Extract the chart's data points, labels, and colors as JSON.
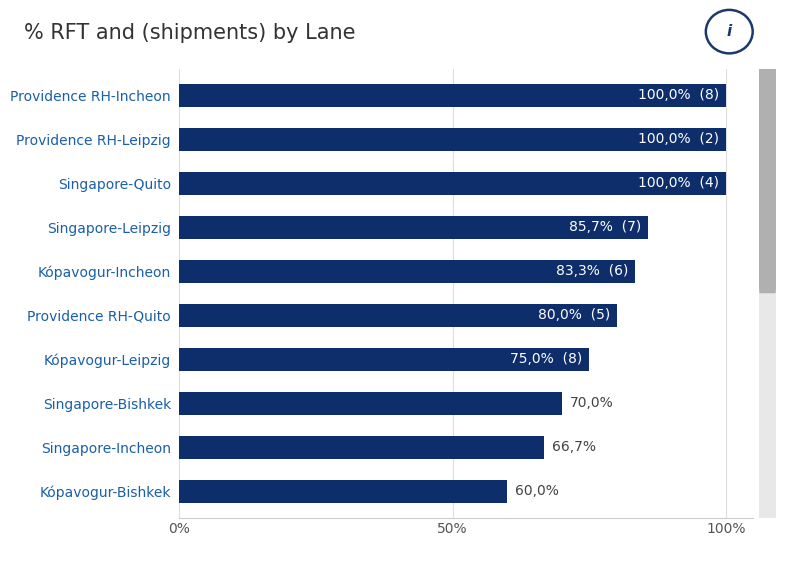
{
  "title": "% RFT and (shipments) by Lane",
  "categories": [
    "Kópavogur-Bishkek",
    "Singapore-Incheon",
    "Singapore-Bishkek",
    "Kópavogur-Leipzig",
    "Providence RH-Quito",
    "Kópavogur-Incheon",
    "Singapore-Leipzig",
    "Singapore-Quito",
    "Providence RH-Leipzig",
    "Providence RH-Incheon"
  ],
  "values": [
    60.0,
    66.7,
    70.0,
    75.0,
    80.0,
    83.3,
    85.7,
    100.0,
    100.0,
    100.0
  ],
  "labels_inside": [
    null,
    null,
    null,
    "75,0%  (8)",
    "80,0%  (5)",
    "83,3%  (6)",
    "85,7%  (7)",
    "100,0%  (4)",
    "100,0%  (2)",
    "100,0%  (8)"
  ],
  "labels_outside": [
    "60,0%",
    "66,7%",
    "70,0%",
    null,
    null,
    null,
    null,
    null,
    null,
    null
  ],
  "bar_color": "#0d2d6b",
  "label_color_inside": "#ffffff",
  "label_color_outside": "#444444",
  "y_label_color": "#1a5fa8",
  "title_color": "#333333",
  "background_color": "#ffffff",
  "title_fontsize": 15,
  "label_fontsize": 10,
  "y_label_fontsize": 10,
  "tick_fontsize": 10,
  "bar_height": 0.52,
  "xlim": [
    0,
    105
  ],
  "xticks": [
    0,
    50,
    100
  ],
  "xticklabels": [
    "0%",
    "50%",
    "100%"
  ],
  "scrollbar_color": "#b0b0b0",
  "scrollbar_bg": "#e8e8e8",
  "info_icon_color": "#1a3a6b"
}
